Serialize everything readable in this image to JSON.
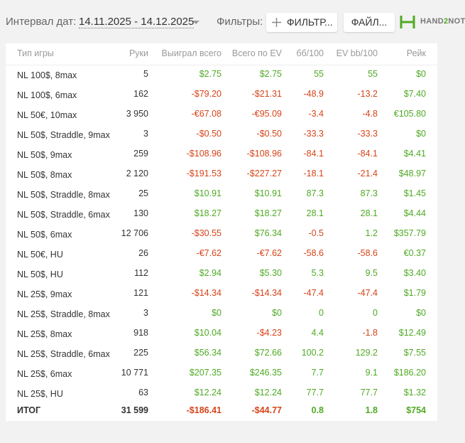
{
  "toolbar": {
    "date_label": "Интервал дат:",
    "date_range": "14.11.2025 - 14.12.2025",
    "filters_label": "Фильтры:",
    "filter_button": "ФИЛЬТР...",
    "file_button": "ФАЙЛ...",
    "logo": [
      "HAND",
      "2",
      "NOTE"
    ]
  },
  "table": {
    "headers": [
      "Тип игры",
      "Руки",
      "Выиграл всего",
      "Всего по EV",
      "бб/100",
      "EV bb/100",
      "Рейк"
    ],
    "rows": [
      [
        "NL 100$, 8max",
        "5",
        "$2.75",
        "$2.75",
        "55",
        "55",
        "$0"
      ],
      [
        "NL 100$, 6max",
        "162",
        "-$79.20",
        "-$21.31",
        "-48.9",
        "-13.2",
        "$7.40"
      ],
      [
        "NL 50€, 10max",
        "3 950",
        "-€67.08",
        "-€95.09",
        "-3.4",
        "-4.8",
        "€105.80"
      ],
      [
        "NL 50$, Straddle, 9max",
        "3",
        "-$0.50",
        "-$0.50",
        "-33.3",
        "-33.3",
        "$0"
      ],
      [
        "NL 50$, 9max",
        "259",
        "-$108.96",
        "-$108.96",
        "-84.1",
        "-84.1",
        "$4.41"
      ],
      [
        "NL 50$, 8max",
        "2 120",
        "-$191.53",
        "-$227.27",
        "-18.1",
        "-21.4",
        "$48.97"
      ],
      [
        "NL 50$, Straddle, 8max",
        "25",
        "$10.91",
        "$10.91",
        "87.3",
        "87.3",
        "$1.45"
      ],
      [
        "NL 50$, Straddle, 6max",
        "130",
        "$18.27",
        "$18.27",
        "28.1",
        "28.1",
        "$4.44"
      ],
      [
        "NL 50$, 6max",
        "12 706",
        "-$30.55",
        "$76.34",
        "-0.5",
        "1.2",
        "$357.79"
      ],
      [
        "NL 50€, HU",
        "26",
        "-€7.62",
        "-€7.62",
        "-58.6",
        "-58.6",
        "€0.37"
      ],
      [
        "NL 50$, HU",
        "112",
        "$2.94",
        "$5.30",
        "5.3",
        "9.5",
        "$3.40"
      ],
      [
        "NL 25$, 9max",
        "121",
        "-$14.34",
        "-$14.34",
        "-47.4",
        "-47.4",
        "$1.79"
      ],
      [
        "NL 25$, Straddle, 8max",
        "3",
        "$0",
        "$0",
        "0",
        "0",
        "$0"
      ],
      [
        "NL 25$, 8max",
        "918",
        "$10.04",
        "-$4.23",
        "4.4",
        "-1.8",
        "$12.49"
      ],
      [
        "NL 25$, Straddle, 6max",
        "225",
        "$56.34",
        "$72.66",
        "100.2",
        "129.2",
        "$7.55"
      ],
      [
        "NL 25$, 6max",
        "10 771",
        "$207.35",
        "$246.35",
        "7.7",
        "9.1",
        "$186.20"
      ],
      [
        "NL 25$, HU",
        "63",
        "$12.24",
        "$12.24",
        "77.7",
        "77.7",
        "$1.32"
      ]
    ],
    "total": [
      "ИТОГ",
      "31 599",
      "-$186.41",
      "-$44.77",
      "0.8",
      "1.8",
      "$754"
    ]
  }
}
